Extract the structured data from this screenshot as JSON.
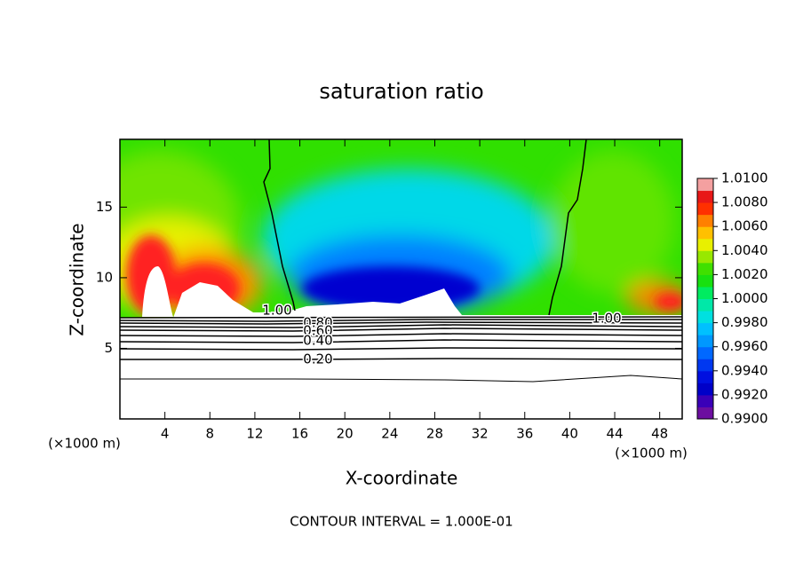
{
  "chart_data": {
    "type": "contour",
    "title": "saturation ratio",
    "x_label": "X-coordinate",
    "y_label": "Z-coordinate",
    "x_unit_labels": [
      "(×1000 m)",
      "(×1000 m)"
    ],
    "footer": "CONTOUR INTERVAL = 1.000E-01",
    "xlim": [
      0,
      50
    ],
    "xticks": [
      4,
      8,
      12,
      16,
      20,
      24,
      28,
      32,
      36,
      40,
      44,
      48
    ],
    "ylim": [
      0,
      19.8
    ],
    "yticks": [
      5,
      10,
      15
    ],
    "contour_labels": [
      "1.00",
      "0.80",
      "0.60",
      "0.40",
      "0.20",
      "1.00"
    ],
    "colorbar": {
      "lim": [
        0.99,
        1.01
      ],
      "ticks": [
        {
          "value": 0.99,
          "label": "0.9900"
        },
        {
          "value": 0.992,
          "label": "0.9920"
        },
        {
          "value": 0.994,
          "label": "0.9940"
        },
        {
          "value": 0.996,
          "label": "0.9960"
        },
        {
          "value": 0.998,
          "label": "0.9980"
        },
        {
          "value": 1.0,
          "label": "1.0000"
        },
        {
          "value": 1.002,
          "label": "1.0020"
        },
        {
          "value": 1.004,
          "label": "1.0040"
        },
        {
          "value": 1.006,
          "label": "1.0060"
        },
        {
          "value": 1.008,
          "label": "1.0080"
        },
        {
          "value": 1.01,
          "label": "1.0100"
        }
      ],
      "colors": [
        "#6c0ea0",
        "#3a00b8",
        "#0000c8",
        "#0010e0",
        "#0038f0",
        "#0068ff",
        "#0098ff",
        "#00c0ff",
        "#00e0e0",
        "#00e8a8",
        "#00ec60",
        "#18e010",
        "#40e000",
        "#98e800",
        "#e8f000",
        "#ffc000",
        "#ff8000",
        "#ff3000",
        "#e81818",
        "#f4a0a0"
      ]
    }
  }
}
